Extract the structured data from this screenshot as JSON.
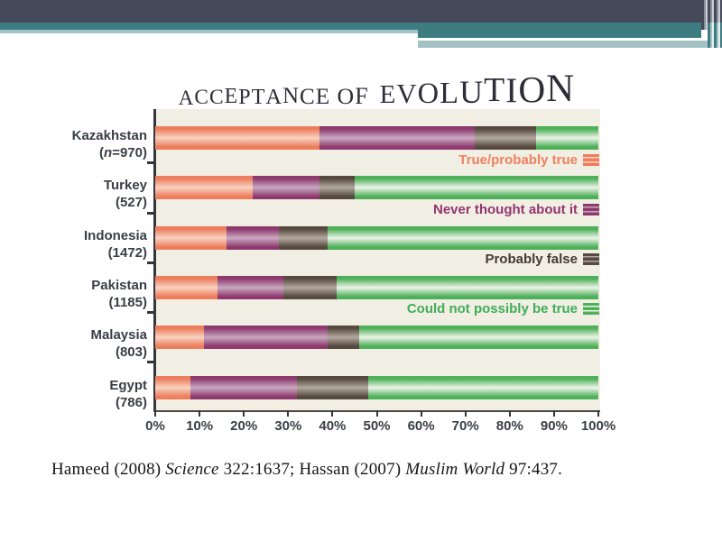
{
  "header": {
    "colors": {
      "dark_band": "#454a5a",
      "teal_band": "#3d7d82",
      "pale_band": "#a4c1c5"
    }
  },
  "chart_data": {
    "type": "bar",
    "stacked": true,
    "orientation": "horizontal",
    "title": "ACCEPTANCE OF EVOLUTION",
    "title_parts": {
      "small": "ACCEPTANCE OF",
      "large": "EVOLUTION"
    },
    "categories": [
      {
        "country": "Kazakhstan",
        "n_label": "(n=970)"
      },
      {
        "country": "Turkey",
        "n_label": "(527)"
      },
      {
        "country": "Indonesia",
        "n_label": "(1472)"
      },
      {
        "country": "Pakistan",
        "n_label": "(1185)"
      },
      {
        "country": "Malaysia",
        "n_label": "(803)"
      },
      {
        "country": "Egypt",
        "n_label": "(786)"
      }
    ],
    "series": [
      {
        "name": "True/probably true",
        "color": "#ec7e5d",
        "color_mid": "#f9d2c0",
        "text_color": "#f0805f",
        "values": [
          37,
          22,
          16,
          14,
          11,
          8
        ]
      },
      {
        "name": "Never thought about it",
        "color": "#8e3a6e",
        "color_mid": "#c9a8c0",
        "text_color": "#93356f",
        "values": [
          35,
          15,
          12,
          15,
          28,
          24
        ]
      },
      {
        "name": "Probably false",
        "color": "#564a40",
        "color_mid": "#b3a89f",
        "text_color": "#413c36",
        "values": [
          14,
          8,
          11,
          12,
          7,
          16
        ]
      },
      {
        "name": "Could not possibly be true",
        "color": "#4fb05a",
        "color_mid": "#edf4e9",
        "text_color": "#3fae57",
        "values": [
          14,
          55,
          61,
          59,
          54,
          52
        ]
      }
    ],
    "x_ticks": [
      "0%",
      "10%",
      "20%",
      "30%",
      "40%",
      "50%",
      "60%",
      "70%",
      "80%",
      "90%",
      "100%"
    ],
    "xlim": [
      0,
      100
    ],
    "grid": false,
    "legend_position": "right, between rows",
    "plot_background": "#f1eee4"
  },
  "citation": {
    "parts": [
      {
        "text": "Hameed (2008) ",
        "italic": false
      },
      {
        "text": "Science",
        "italic": true
      },
      {
        "text": " 322:1637; Hassan (2007) ",
        "italic": false
      },
      {
        "text": "Muslim World",
        "italic": true
      },
      {
        "text": " 97:437.",
        "italic": false
      }
    ]
  }
}
